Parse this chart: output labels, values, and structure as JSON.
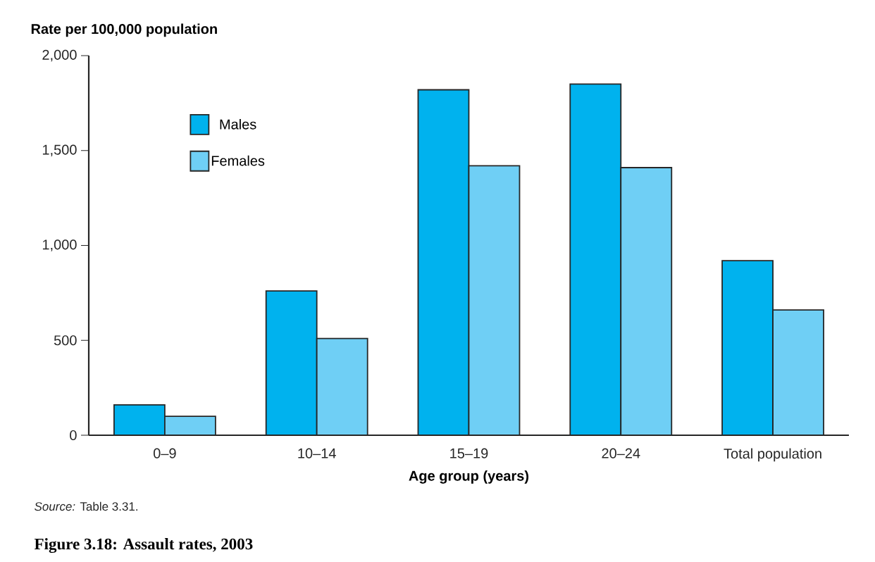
{
  "chart_data": {
    "type": "bar",
    "title": "Figure 3.18: Assault rates, 2003",
    "xlabel": "Age group (years)",
    "ylabel": "Rate per 100,000 population",
    "categories": [
      "0–9",
      "10–14",
      "15–19",
      "20–24",
      "Total population"
    ],
    "series": [
      {
        "name": "Males",
        "color": "#00b2ee",
        "values": [
          160,
          760,
          1820,
          1850,
          920
        ]
      },
      {
        "name": "Females",
        "color": "#6fcff5",
        "values": [
          100,
          510,
          1420,
          1410,
          660
        ]
      }
    ],
    "ylim": [
      0,
      2000
    ],
    "yticks": [
      0,
      500,
      {
        "value": 1000,
        "label": "1,000"
      },
      {
        "value": 1500,
        "label": "1,500"
      },
      {
        "value": 2000,
        "label": "2,000"
      }
    ],
    "grid": false,
    "legend": "top left",
    "annotations": [
      "*Source:* Table 3.31."
    ]
  }
}
